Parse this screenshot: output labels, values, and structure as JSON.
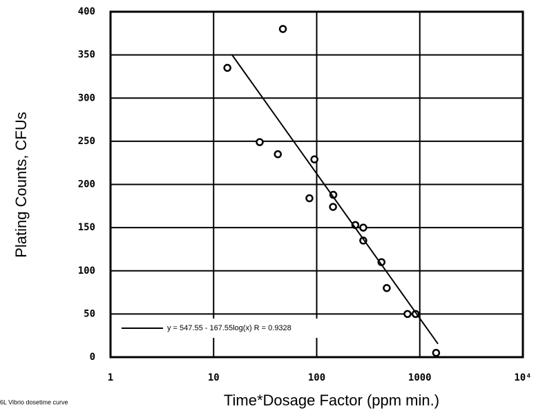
{
  "chart_data": {
    "type": "scatter",
    "xlabel": "Time*Dosage Factor (ppm min.)",
    "ylabel": "Plating Counts, CFUs",
    "note": "6L Vibrio dosetime curve",
    "xscale": "log",
    "xlim": [
      1,
      10000
    ],
    "xticks": [
      1,
      10,
      100,
      1000,
      {
        "value": 10000,
        "label": "10⁴"
      }
    ],
    "ylim": [
      0,
      400
    ],
    "yticks": [
      0,
      50,
      100,
      150,
      200,
      250,
      300,
      350,
      400
    ],
    "grid": true,
    "legend": "lower left",
    "series": [
      {
        "type": "scatter",
        "color": "#000000",
        "x": [
          13.6,
          47,
          28,
          42,
          95,
          85,
          145,
          144,
          237,
          283,
          283,
          425,
          478,
          760,
          910,
          1440
        ],
        "values": [
          335,
          380,
          249,
          235,
          229,
          184,
          188,
          174,
          153,
          150,
          135,
          110,
          80,
          50,
          50,
          5
        ]
      },
      {
        "type": "line",
        "name": "y = 547.55 - 167.55log(x)   R = 0.9328",
        "color": "#000000",
        "x": [
          15,
          1500
        ],
        "values": [
          350.5,
          15.4
        ]
      }
    ]
  }
}
